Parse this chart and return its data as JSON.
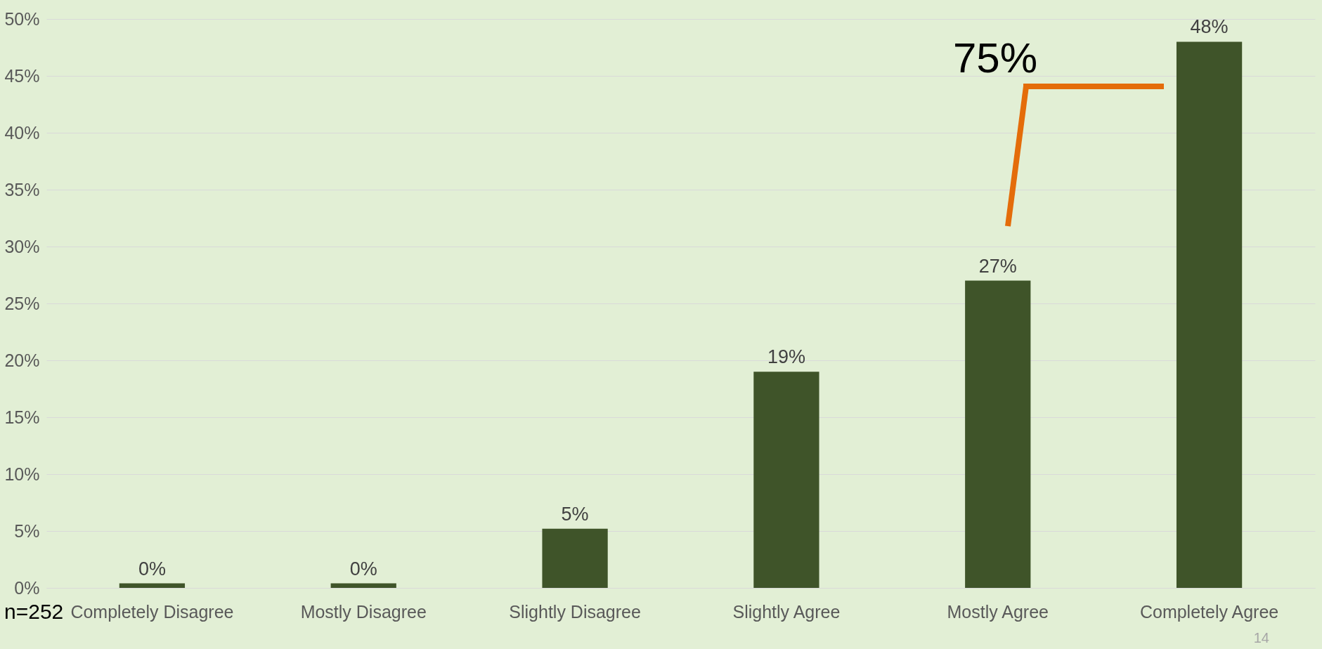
{
  "chart_data": {
    "type": "bar",
    "categories": [
      "Completely Disagree",
      "Mostly Disagree",
      "Slightly Disagree",
      "Slightly Agree",
      "Mostly Agree",
      "Completely Agree"
    ],
    "values": [
      0.4,
      0.4,
      5.2,
      19,
      27,
      48
    ],
    "value_labels": [
      "0%",
      "0%",
      "5%",
      "19%",
      "27%",
      "48%"
    ],
    "color": "#3f5429",
    "ylim": [
      0,
      50
    ],
    "yticks": [
      {
        "value": 0,
        "label": "0%"
      },
      {
        "value": 5,
        "label": "5%"
      },
      {
        "value": 10,
        "label": "10%"
      },
      {
        "value": 15,
        "label": "15%"
      },
      {
        "value": 20,
        "label": "20%"
      },
      {
        "value": 25,
        "label": "25%"
      },
      {
        "value": 30,
        "label": "30%"
      },
      {
        "value": 35,
        "label": "35%"
      },
      {
        "value": 40,
        "label": "40%"
      },
      {
        "value": 45,
        "label": "45%"
      },
      {
        "value": 50,
        "label": "50%"
      }
    ],
    "grid": "y",
    "annotations": [
      "75%",
      "n=252",
      "14"
    ]
  }
}
